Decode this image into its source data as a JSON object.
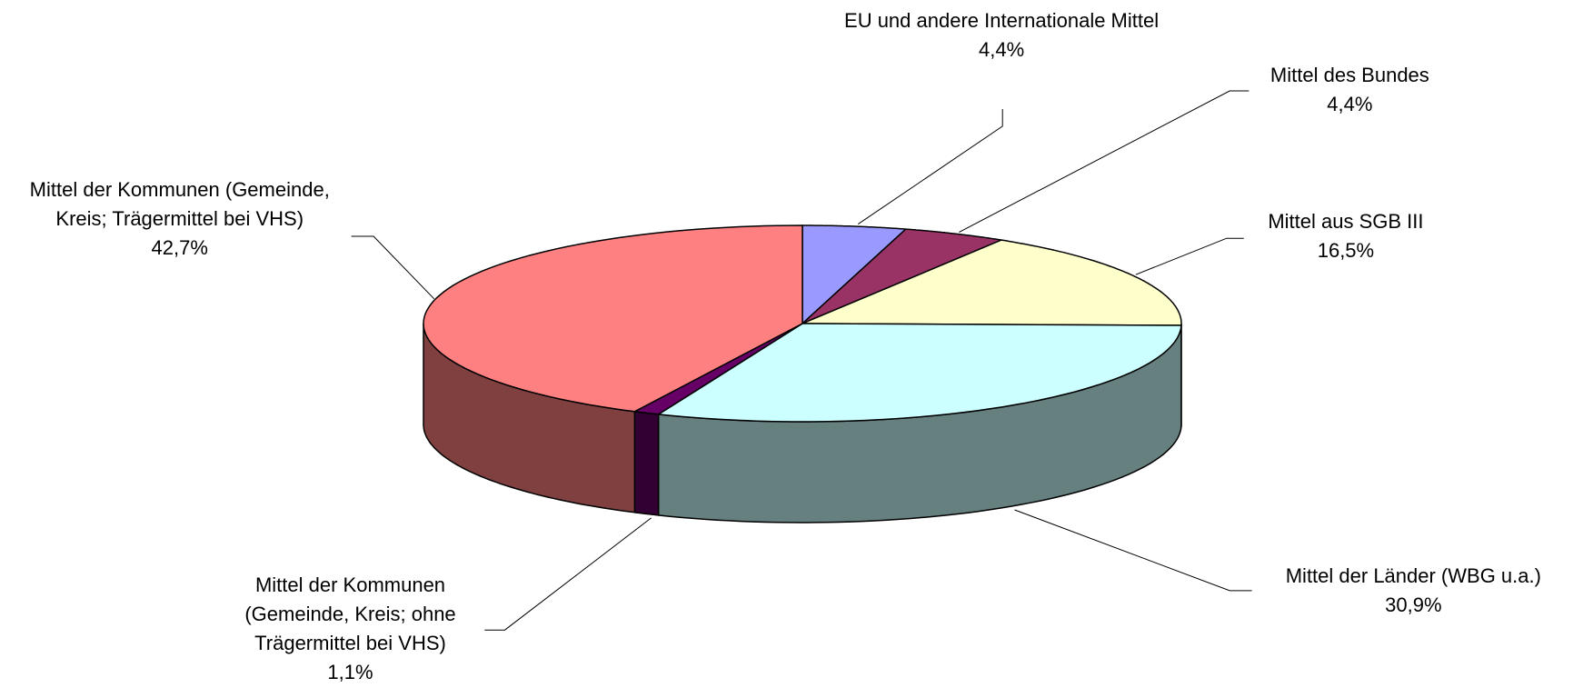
{
  "chart_data": {
    "type": "pie3d",
    "categories": [
      "EU und andere Internationale Mittel",
      "Mittel des Bundes",
      "Mittel aus SGB III",
      "Mittel der Länder (WBG u.a.)",
      "Mittel der Kommunen (Gemeinde, Kreis; ohne Trägermittel bei VHS)",
      "Mittel der Kommunen (Gemeinde, Kreis; Trägermittel bei VHS)"
    ],
    "values": [
      4.4,
      4.4,
      16.5,
      30.9,
      1.1,
      42.7
    ],
    "value_labels": [
      "4,4%",
      "4,4%",
      "16,5%",
      "30,9%",
      "1,1%",
      "42,7%"
    ],
    "colors": [
      "#9999ff",
      "#993366",
      "#ffffcc",
      "#ccffff",
      "#660066",
      "#ff8080"
    ]
  }
}
